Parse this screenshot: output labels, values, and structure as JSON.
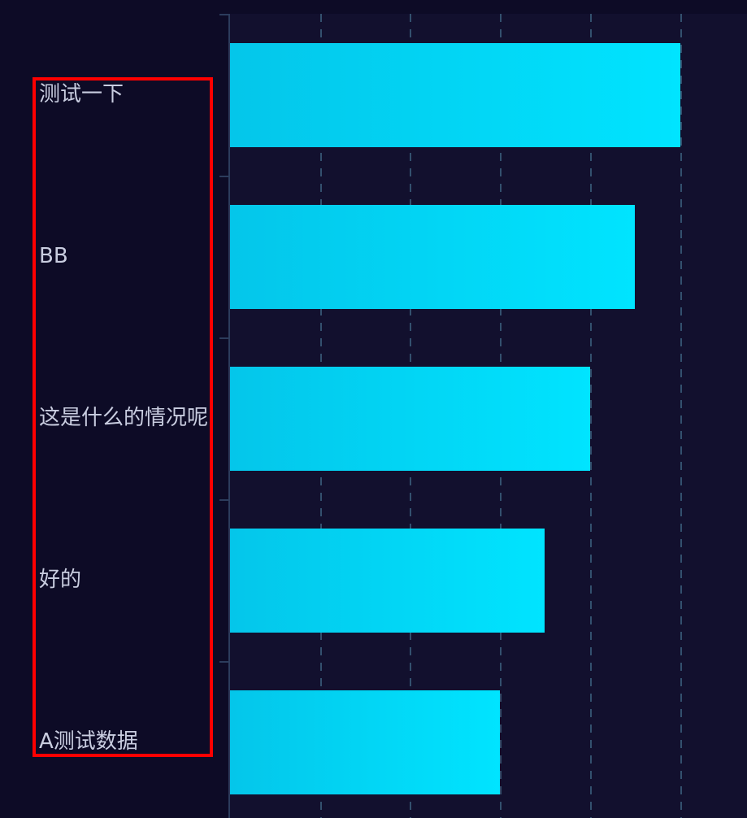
{
  "chart_data": {
    "type": "bar",
    "orientation": "horizontal",
    "title": "",
    "xlabel": "",
    "ylabel": "",
    "categories": [
      "测试一下",
      "BB",
      "这是什么的情况呢",
      "好的",
      "A测试数据"
    ],
    "values": [
      5,
      4.5,
      4,
      3.5,
      3
    ],
    "xlim": [
      0,
      5.75
    ],
    "x_ticks_labeled": false,
    "grid": {
      "vertical_dashed": true,
      "horizontal": false,
      "visible_divisions": 5
    },
    "legend": "none",
    "colors": {
      "page_background": "#0d0b26",
      "plot_background": "#12102e",
      "bar_gradient_start": "#04c6ea",
      "bar_gradient_end": "#00e4ff",
      "gridline": "#33506e",
      "axis": "#2c3c5c",
      "label": "#c9cde0"
    }
  },
  "annotation": {
    "box_color": "#ff0000",
    "highlighted_region": "y-axis category labels"
  }
}
